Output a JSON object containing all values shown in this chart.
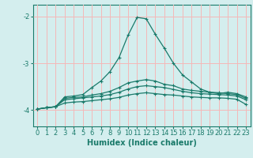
{
  "xlabel": "Humidex (Indice chaleur)",
  "background_color": "#d4eeee",
  "grid_color": "#f5b8b8",
  "line_color": "#1a7a6a",
  "x_values": [
    0,
    1,
    2,
    3,
    4,
    5,
    6,
    7,
    8,
    9,
    10,
    11,
    12,
    13,
    14,
    15,
    16,
    17,
    18,
    19,
    20,
    21,
    22,
    23
  ],
  "xlim": [
    -0.5,
    23.5
  ],
  "ylim": [
    -4.35,
    -1.75
  ],
  "yticks": [
    -4,
    -3,
    -2
  ],
  "series": [
    [
      -3.98,
      -3.95,
      -3.93,
      -3.72,
      -3.7,
      -3.67,
      -3.52,
      -3.38,
      -3.18,
      -2.88,
      -2.4,
      -2.02,
      -2.05,
      -2.38,
      -2.68,
      -3.0,
      -3.25,
      -3.4,
      -3.55,
      -3.62,
      -3.65,
      -3.62,
      -3.65,
      -3.72
    ],
    [
      -3.98,
      -3.95,
      -3.93,
      -3.75,
      -3.73,
      -3.72,
      -3.68,
      -3.65,
      -3.6,
      -3.52,
      -3.42,
      -3.38,
      -3.35,
      -3.38,
      -3.45,
      -3.48,
      -3.55,
      -3.58,
      -3.6,
      -3.62,
      -3.63,
      -3.65,
      -3.67,
      -3.75
    ],
    [
      -3.98,
      -3.95,
      -3.93,
      -3.78,
      -3.76,
      -3.74,
      -3.72,
      -3.7,
      -3.67,
      -3.62,
      -3.55,
      -3.5,
      -3.48,
      -3.5,
      -3.52,
      -3.56,
      -3.6,
      -3.63,
      -3.65,
      -3.66,
      -3.67,
      -3.68,
      -3.7,
      -3.78
    ],
    [
      -3.98,
      -3.95,
      -3.93,
      -3.85,
      -3.83,
      -3.82,
      -3.8,
      -3.78,
      -3.76,
      -3.73,
      -3.68,
      -3.65,
      -3.63,
      -3.65,
      -3.67,
      -3.68,
      -3.7,
      -3.72,
      -3.73,
      -3.74,
      -3.74,
      -3.75,
      -3.77,
      -3.88
    ]
  ]
}
